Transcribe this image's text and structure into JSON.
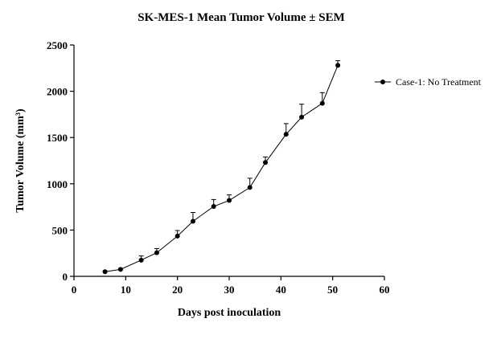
{
  "chart_data": {
    "type": "line",
    "title": "SK-MES-1 Mean Tumor Volume ± SEM",
    "xlabel": "Days post inoculation",
    "ylabel": "Tumor Volume (mm³)",
    "xlim": [
      0,
      60
    ],
    "ylim": [
      0,
      2500
    ],
    "xticks": [
      0,
      10,
      20,
      30,
      40,
      50,
      60
    ],
    "yticks": [
      0,
      500,
      1000,
      1500,
      2000,
      2500
    ],
    "grid": false,
    "legend_position": "right",
    "series": [
      {
        "name": "Case-1: No Treatment",
        "color": "#000000",
        "marker": "circle",
        "x": [
          6,
          9,
          13,
          16,
          20,
          23,
          27,
          30,
          34,
          37,
          41,
          44,
          48,
          51
        ],
        "y": [
          50,
          75,
          175,
          255,
          435,
          595,
          755,
          820,
          960,
          1230,
          1535,
          1720,
          1870,
          2280
        ],
        "sem": [
          5,
          10,
          45,
          45,
          60,
          95,
          75,
          60,
          100,
          60,
          115,
          140,
          115,
          50
        ]
      }
    ]
  }
}
